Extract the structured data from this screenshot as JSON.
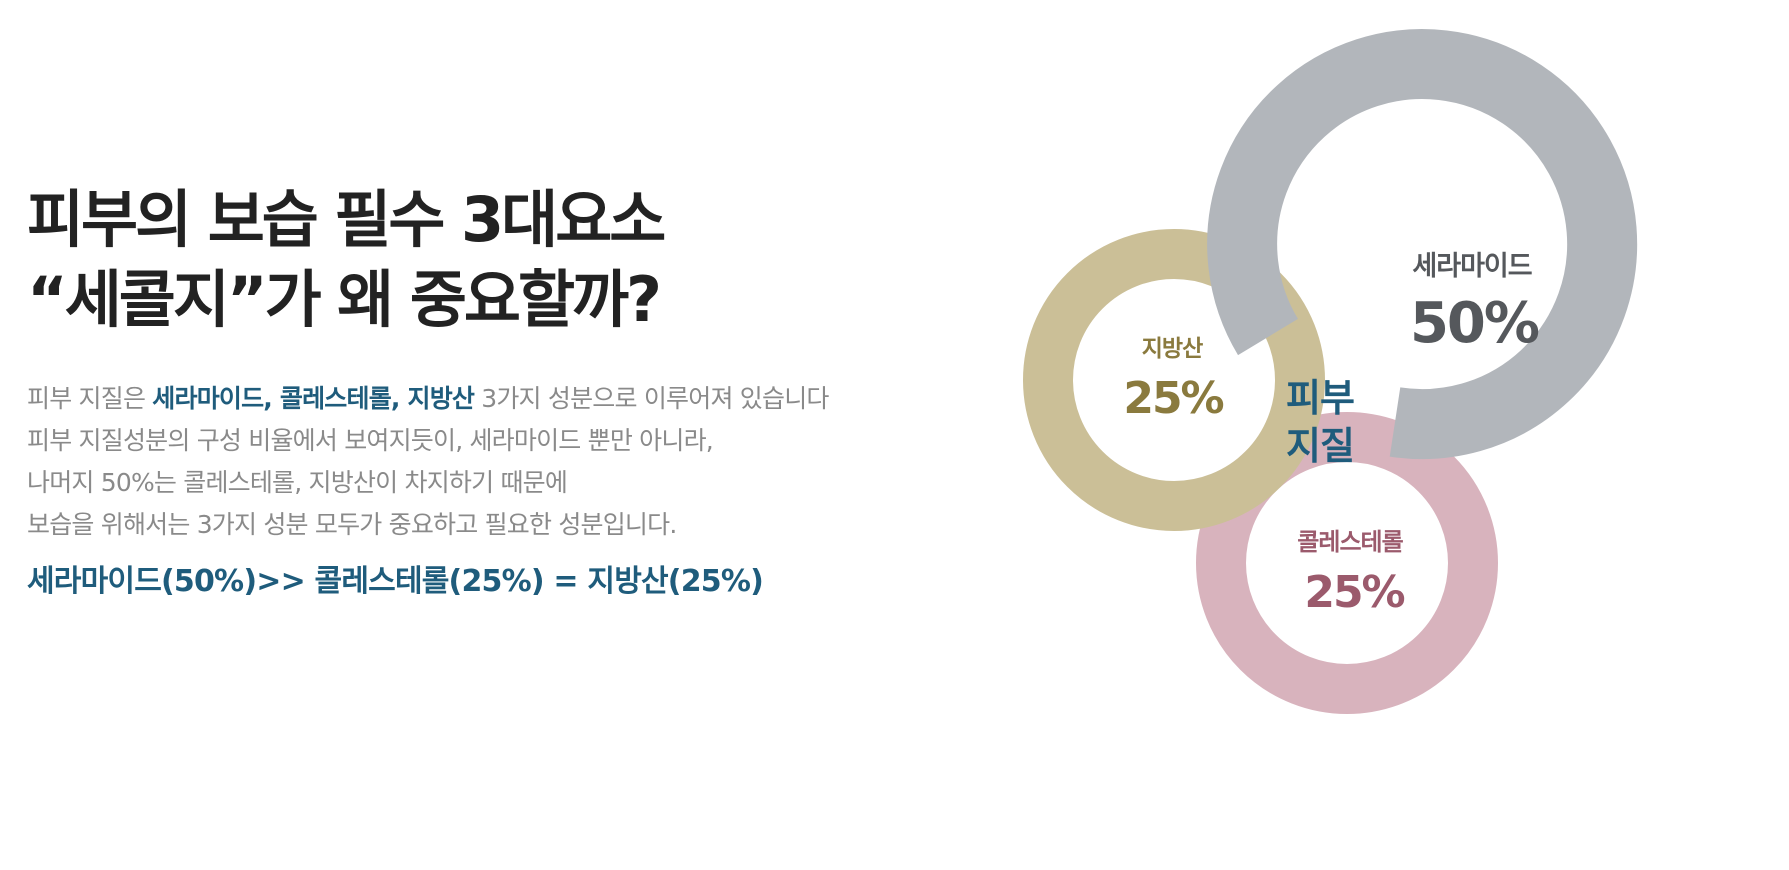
{
  "heading": {
    "line1": "피부의 보습 필수 3대요소",
    "line2": "“세콜지”가 왜 중요할까?"
  },
  "description": {
    "line1_prefix": "피부 지질은 ",
    "line1_highlight": "세라마이드, 콜레스테롤, 지방산",
    "line1_suffix": " 3가지 성분으로 이루어져 있습니다",
    "line2": "피부 지질성분의 구성 비율에서 보여지듯이, 세라마이드 뿐만 아니라,",
    "line3": "나머지 50%는 콜레스테롤, 지방산이 차지하기 때문에",
    "line4": "보습을 위해서는 3가지 성분 모두가 중요하고 필요한 성분입니다."
  },
  "summary": "세라마이드(50%)>> 콜레스테롤(25%) = 지방산(25%)",
  "diagram": {
    "center_label_line1": "피부",
    "center_label_line2": "지질",
    "components": [
      {
        "name": "세라마이드",
        "percent_label": "50%",
        "share": 0.5,
        "ring_color": "#b2b6bb",
        "text_color": "#55585c"
      },
      {
        "name": "지방산",
        "percent_label": "25%",
        "share": 0.25,
        "ring_color": "#cbbf97",
        "text_color": "#8a7a3e"
      },
      {
        "name": "콜레스테롤",
        "percent_label": "25%",
        "share": 0.25,
        "ring_color": "#d8b3bd",
        "text_color": "#9b5a6c"
      }
    ],
    "accent_color": "#1f5c7c"
  }
}
